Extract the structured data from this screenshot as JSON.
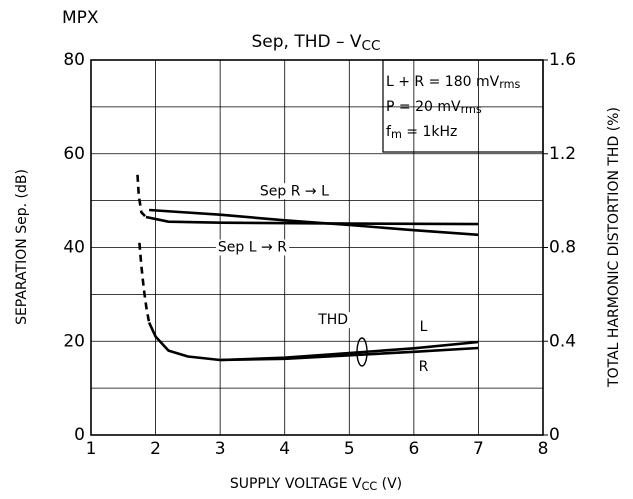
{
  "chart_data": {
    "type": "line",
    "corner_label": "MPX",
    "title": [
      {
        "text": "Sep, THD  –  V"
      },
      {
        "text": "CC",
        "sub": true
      }
    ],
    "xlabel": [
      {
        "text": "SUPPLY VOLTAGE   V"
      },
      {
        "text": "CC",
        "sub": true
      },
      {
        "text": "   (V)"
      }
    ],
    "ylabel": [
      {
        "text": "SEPARATION   Sep.  (dB)"
      }
    ],
    "y2label": [
      {
        "text": "TOTAL HARMONIC DISTORTION   THD   (%)"
      }
    ],
    "xlim": [
      1,
      8
    ],
    "xticks": [
      1,
      2,
      3,
      4,
      5,
      6,
      7,
      8
    ],
    "ylim": [
      0,
      80
    ],
    "yticks": [
      0,
      20,
      40,
      60,
      80
    ],
    "y_minor_ticks": [
      10,
      30,
      50,
      70
    ],
    "y2lim": [
      0,
      1.6
    ],
    "y2ticks": [
      {
        "value": 0,
        "label": "0"
      },
      {
        "value": 0.4,
        "label": "0.4"
      },
      {
        "value": 0.8,
        "label": "0.8"
      },
      {
        "value": 1.2,
        "label": "1.2"
      },
      {
        "value": 1.6,
        "label": "1.6"
      }
    ],
    "grid": true,
    "conditions": [
      [
        {
          "text": "L + R = 180 mV"
        },
        {
          "text": "rms",
          "sub": true
        }
      ],
      [
        {
          "text": "P = 20 mV"
        },
        {
          "text": "rms",
          "sub": true
        }
      ],
      [
        {
          "text": "f"
        },
        {
          "text": "m",
          "sub": true
        },
        {
          "text": " = 1kHz"
        }
      ]
    ],
    "annotations": [
      {
        "text": "Sep R → L",
        "x": 4.15,
        "y": 52
      },
      {
        "text": "Sep L → R",
        "x": 3.5,
        "y": 40
      },
      {
        "text": "THD",
        "x": 4.75,
        "y": 24.5
      },
      {
        "text": "L",
        "x": 6.15,
        "y": 23
      },
      {
        "text": "R",
        "x": 6.15,
        "y": 14.5
      }
    ],
    "series": [
      {
        "name": "Sep R → L",
        "color": "#000",
        "x": [
          1.9,
          3,
          4,
          5,
          6,
          7
        ],
        "values": [
          48,
          47,
          45.8,
          44.8,
          43.7,
          42.7
        ]
      },
      {
        "name": "Sep L → R",
        "color": "#000",
        "x": [
          1.85,
          2.2,
          3,
          5,
          7
        ],
        "values": [
          46.5,
          45.5,
          45.3,
          45.1,
          45
        ]
      },
      {
        "color": "#000",
        "dashed": true,
        "x": [
          1.72,
          1.74,
          1.78,
          1.85
        ],
        "values": [
          55.5,
          51,
          47.5,
          46.5
        ]
      },
      {
        "name": "THD L",
        "color": "#000",
        "axis": "y2",
        "x": [
          1.9,
          2,
          2.2,
          2.5,
          3,
          4,
          5,
          6,
          7
        ],
        "values": [
          0.48,
          0.42,
          0.36,
          0.335,
          0.32,
          0.33,
          0.35,
          0.37,
          0.397
        ]
      },
      {
        "name": "THD R",
        "color": "#000",
        "axis": "y2",
        "x": [
          3,
          4,
          5,
          6,
          7
        ],
        "values": [
          0.32,
          0.325,
          0.34,
          0.355,
          0.371
        ]
      },
      {
        "color": "#000",
        "dashed": true,
        "axis": "y2",
        "x": [
          1.75,
          1.78,
          1.82,
          1.86,
          1.9
        ],
        "values": [
          0.82,
          0.72,
          0.62,
          0.54,
          0.48
        ]
      }
    ]
  }
}
